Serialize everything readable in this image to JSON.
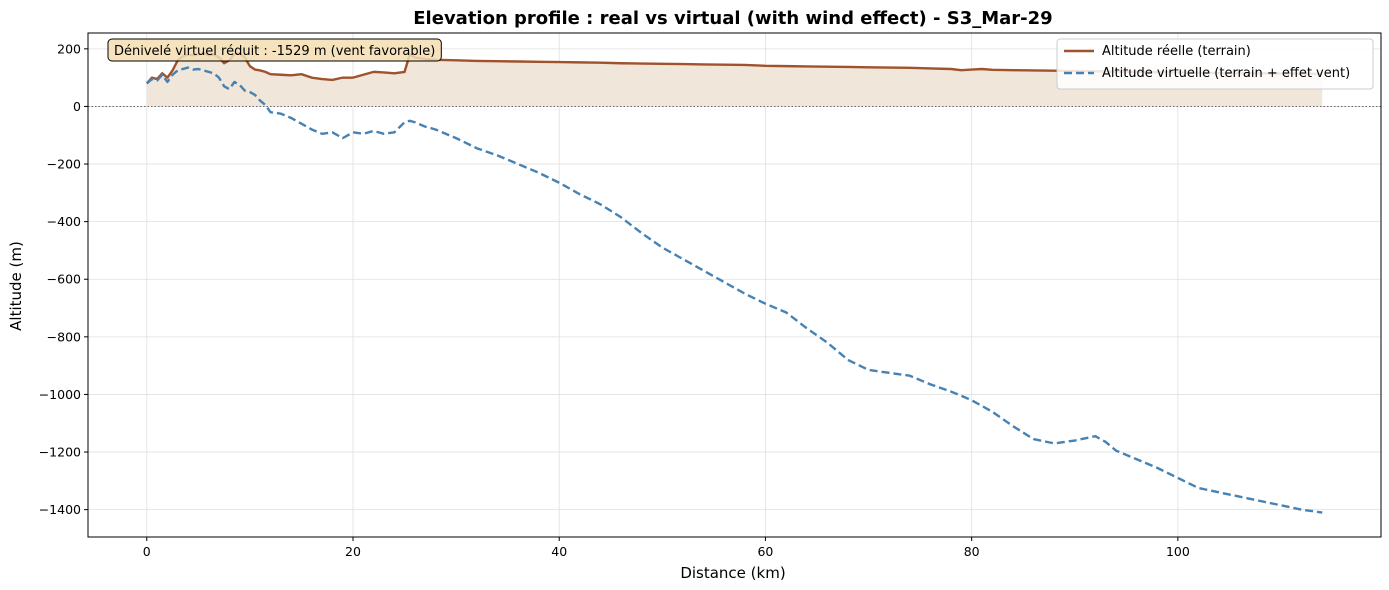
{
  "chart_data": {
    "type": "line",
    "title": "Elevation profile : real vs virtual (with wind effect) - S3_Mar-29",
    "xlabel": "Distance (km)",
    "ylabel": "Altitude (m)",
    "xlim": [
      -5.7,
      119.7
    ],
    "ylim": [
      -1495,
      255
    ],
    "xticks": [
      0,
      20,
      40,
      60,
      80,
      100
    ],
    "yticks": [
      200,
      0,
      -200,
      -400,
      -600,
      -800,
      -1000,
      -1200,
      -1400
    ],
    "xtick_labels": [
      "0",
      "20",
      "40",
      "60",
      "80",
      "100"
    ],
    "ytick_labels": [
      "200",
      "0",
      "−200",
      "−400",
      "−600",
      "−800",
      "−1000",
      "−1200",
      "−1400"
    ],
    "grid": true,
    "legend_position": "upper right",
    "annotation": "Dénivelé virtuel réduit : -1529 m (vent favorable)",
    "series": [
      {
        "name": "Altitude réelle (terrain)",
        "color": "#a0522d",
        "style": "solid",
        "fill_to_zero": true,
        "fill_color": "#f0e6da",
        "x": [
          0,
          0.5,
          1,
          1.5,
          2,
          2.5,
          3,
          3.5,
          4,
          4.5,
          5,
          5.5,
          6,
          6.5,
          7,
          7.5,
          8,
          8.5,
          9,
          9.5,
          10,
          10.5,
          11,
          11.5,
          12,
          13,
          14,
          15,
          16,
          17,
          18,
          19,
          20,
          21,
          22,
          23,
          24,
          25,
          25.5,
          26,
          27,
          28,
          30,
          32,
          34,
          36,
          38,
          40,
          42,
          44,
          46,
          48,
          50,
          52,
          54,
          56,
          58,
          60,
          62,
          64,
          66,
          68,
          70,
          72,
          74,
          76,
          78,
          79,
          80,
          81,
          82,
          84,
          86,
          88,
          90,
          92,
          94,
          96,
          98,
          100,
          102,
          104,
          106,
          108,
          110,
          112,
          114
        ],
        "y": [
          80,
          100,
          95,
          115,
          100,
          125,
          160,
          175,
          180,
          178,
          182,
          185,
          178,
          180,
          170,
          150,
          160,
          182,
          185,
          170,
          140,
          128,
          125,
          120,
          112,
          110,
          108,
          112,
          100,
          95,
          92,
          100,
          100,
          110,
          120,
          118,
          115,
          120,
          180,
          170,
          165,
          162,
          160,
          158,
          157,
          156,
          155,
          154,
          153,
          152,
          150,
          149,
          148,
          147,
          146,
          145,
          144,
          141,
          140,
          139,
          138,
          137,
          136,
          135,
          134,
          132,
          130,
          126,
          128,
          130,
          127,
          126,
          125,
          124,
          123,
          122,
          121,
          120,
          119,
          118,
          117,
          116,
          115,
          115,
          114,
          114,
          113
        ]
      },
      {
        "name": "Altitude virtuelle (terrain + effet vent)",
        "color": "#4682b4",
        "style": "dashed",
        "fill_to_zero": false,
        "x": [
          0,
          0.5,
          1,
          1.5,
          2,
          2.5,
          3,
          3.5,
          4,
          4.5,
          5,
          5.5,
          6,
          6.5,
          7,
          7.5,
          8,
          8.5,
          9,
          9.5,
          10,
          10.5,
          11,
          11.5,
          12,
          13,
          14,
          15,
          16,
          17,
          18,
          19,
          20,
          21,
          22,
          23,
          24,
          25,
          25.5,
          26,
          27,
          28,
          30,
          32,
          34,
          36,
          38,
          40,
          42,
          44,
          46,
          48,
          50,
          52,
          54,
          56,
          58,
          60,
          62,
          64,
          66,
          68,
          70,
          72,
          74,
          76,
          78,
          80,
          82,
          84,
          86,
          88,
          90,
          92,
          93,
          94,
          96,
          98,
          100,
          102,
          104,
          106,
          108,
          110,
          112,
          114
        ],
        "y": [
          80,
          95,
          90,
          110,
          85,
          110,
          125,
          130,
          135,
          128,
          130,
          125,
          120,
          115,
          100,
          70,
          60,
          85,
          75,
          55,
          50,
          40,
          20,
          5,
          -20,
          -25,
          -40,
          -60,
          -80,
          -95,
          -90,
          -110,
          -90,
          -95,
          -85,
          -95,
          -90,
          -55,
          -50,
          -55,
          -70,
          -80,
          -110,
          -145,
          -170,
          -200,
          -230,
          -265,
          -305,
          -340,
          -385,
          -440,
          -490,
          -530,
          -570,
          -610,
          -650,
          -685,
          -715,
          -770,
          -820,
          -880,
          -915,
          -925,
          -935,
          -965,
          -990,
          -1020,
          -1060,
          -1110,
          -1155,
          -1170,
          -1160,
          -1145,
          -1165,
          -1195,
          -1225,
          -1255,
          -1290,
          -1325,
          -1340,
          -1355,
          -1370,
          -1385,
          -1400,
          -1410
        ]
      }
    ]
  }
}
